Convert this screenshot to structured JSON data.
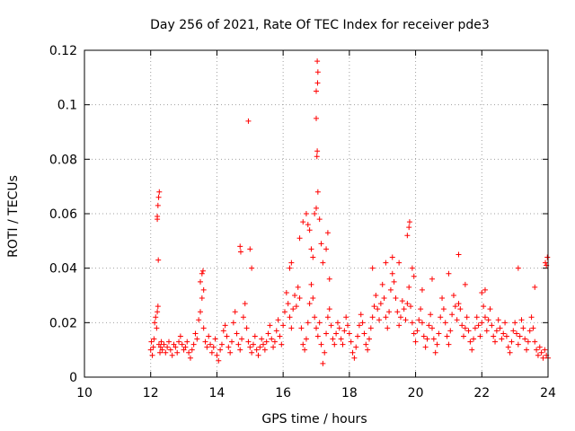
{
  "chart_data": {
    "type": "scatter",
    "title": "Day 256 of 2021, Rate Of TEC Index for receiver pde3",
    "xlabel": "GPS time / hours",
    "ylabel": "ROTI / TECUs",
    "xlim": [
      10,
      24
    ],
    "ylim": [
      0,
      0.12
    ],
    "xticks": [
      "10",
      "12",
      "14",
      "16",
      "18",
      "20",
      "22",
      "24"
    ],
    "yticks": [
      "0",
      "0.02",
      "0.04",
      "0.06",
      "0.08",
      "0.1",
      "0.12"
    ],
    "grid": true,
    "marker": "+",
    "colors": {
      "series": "#ff0000",
      "grid": "#a0a0a0",
      "frame": "#000000"
    },
    "series": [
      {
        "points": [
          [
            12.0,
            0.01
          ],
          [
            12.02,
            0.013
          ],
          [
            12.05,
            0.008
          ],
          [
            12.08,
            0.011
          ],
          [
            12.1,
            0.014
          ],
          [
            12.12,
            0.02
          ],
          [
            12.15,
            0.022
          ],
          [
            12.18,
            0.018
          ],
          [
            12.2,
            0.024
          ],
          [
            12.22,
            0.026
          ],
          [
            12.25,
            0.012
          ],
          [
            12.28,
            0.009
          ],
          [
            12.3,
            0.011
          ],
          [
            12.32,
            0.013
          ],
          [
            12.35,
            0.01
          ],
          [
            12.4,
            0.012
          ],
          [
            12.45,
            0.009
          ],
          [
            12.5,
            0.011
          ],
          [
            12.55,
            0.013
          ],
          [
            12.6,
            0.01
          ],
          [
            12.65,
            0.008
          ],
          [
            12.7,
            0.012
          ],
          [
            12.75,
            0.011
          ],
          [
            12.8,
            0.009
          ],
          [
            12.85,
            0.013
          ],
          [
            12.9,
            0.015
          ],
          [
            12.95,
            0.012
          ],
          [
            13.0,
            0.01
          ],
          [
            13.05,
            0.011
          ],
          [
            13.1,
            0.013
          ],
          [
            13.15,
            0.009
          ],
          [
            13.2,
            0.007
          ],
          [
            13.25,
            0.01
          ],
          [
            13.3,
            0.012
          ],
          [
            13.35,
            0.016
          ],
          [
            13.4,
            0.014
          ],
          [
            13.45,
            0.021
          ],
          [
            13.5,
            0.024
          ],
          [
            13.55,
            0.029
          ],
          [
            13.6,
            0.018
          ],
          [
            13.65,
            0.013
          ],
          [
            13.7,
            0.011
          ],
          [
            13.75,
            0.015
          ],
          [
            13.8,
            0.012
          ],
          [
            13.85,
            0.009
          ],
          [
            13.9,
            0.011
          ],
          [
            13.95,
            0.014
          ],
          [
            14.0,
            0.008
          ],
          [
            14.05,
            0.006
          ],
          [
            14.1,
            0.01
          ],
          [
            14.15,
            0.012
          ],
          [
            14.2,
            0.017
          ],
          [
            14.25,
            0.019
          ],
          [
            14.3,
            0.015
          ],
          [
            14.35,
            0.011
          ],
          [
            14.4,
            0.009
          ],
          [
            14.45,
            0.013
          ],
          [
            14.5,
            0.02
          ],
          [
            14.55,
            0.024
          ],
          [
            14.6,
            0.016
          ],
          [
            14.65,
            0.012
          ],
          [
            14.7,
            0.01
          ],
          [
            14.75,
            0.014
          ],
          [
            14.8,
            0.022
          ],
          [
            14.85,
            0.027
          ],
          [
            14.9,
            0.018
          ],
          [
            14.95,
            0.013
          ],
          [
            15.0,
            0.011
          ],
          [
            15.05,
            0.009
          ],
          [
            15.1,
            0.012
          ],
          [
            15.15,
            0.015
          ],
          [
            15.2,
            0.01
          ],
          [
            15.25,
            0.008
          ],
          [
            15.3,
            0.011
          ],
          [
            15.35,
            0.014
          ],
          [
            15.4,
            0.012
          ],
          [
            15.45,
            0.01
          ],
          [
            15.5,
            0.013
          ],
          [
            15.55,
            0.016
          ],
          [
            15.6,
            0.019
          ],
          [
            15.65,
            0.014
          ],
          [
            15.7,
            0.011
          ],
          [
            15.75,
            0.013
          ],
          [
            15.8,
            0.017
          ],
          [
            15.85,
            0.021
          ],
          [
            15.9,
            0.015
          ],
          [
            15.95,
            0.012
          ],
          [
            16.0,
            0.019
          ],
          [
            16.05,
            0.024
          ],
          [
            16.1,
            0.031
          ],
          [
            16.15,
            0.027
          ],
          [
            16.2,
            0.022
          ],
          [
            16.25,
            0.018
          ],
          [
            16.3,
            0.025
          ],
          [
            16.35,
            0.03
          ],
          [
            16.4,
            0.026
          ],
          [
            16.45,
            0.033
          ],
          [
            16.5,
            0.029
          ],
          [
            16.55,
            0.018
          ],
          [
            16.6,
            0.012
          ],
          [
            16.65,
            0.01
          ],
          [
            16.7,
            0.014
          ],
          [
            16.75,
            0.02
          ],
          [
            16.8,
            0.027
          ],
          [
            16.85,
            0.034
          ],
          [
            16.9,
            0.029
          ],
          [
            16.95,
            0.022
          ],
          [
            17.0,
            0.018
          ],
          [
            17.05,
            0.015
          ],
          [
            17.1,
            0.02
          ],
          [
            17.15,
            0.012
          ],
          [
            17.2,
            0.005
          ],
          [
            17.25,
            0.009
          ],
          [
            17.3,
            0.016
          ],
          [
            17.35,
            0.022
          ],
          [
            17.4,
            0.025
          ],
          [
            17.45,
            0.019
          ],
          [
            17.5,
            0.014
          ],
          [
            17.55,
            0.012
          ],
          [
            17.6,
            0.016
          ],
          [
            17.65,
            0.02
          ],
          [
            17.7,
            0.018
          ],
          [
            17.75,
            0.014
          ],
          [
            17.8,
            0.012
          ],
          [
            17.85,
            0.017
          ],
          [
            17.9,
            0.022
          ],
          [
            17.95,
            0.019
          ],
          [
            18.0,
            0.016
          ],
          [
            18.05,
            0.013
          ],
          [
            18.1,
            0.009
          ],
          [
            18.15,
            0.007
          ],
          [
            18.2,
            0.011
          ],
          [
            18.25,
            0.015
          ],
          [
            18.3,
            0.019
          ],
          [
            18.35,
            0.023
          ],
          [
            18.4,
            0.02
          ],
          [
            18.45,
            0.016
          ],
          [
            18.5,
            0.012
          ],
          [
            18.55,
            0.01
          ],
          [
            18.6,
            0.014
          ],
          [
            18.65,
            0.018
          ],
          [
            18.7,
            0.022
          ],
          [
            18.75,
            0.026
          ],
          [
            18.8,
            0.03
          ],
          [
            18.85,
            0.025
          ],
          [
            18.9,
            0.021
          ],
          [
            18.95,
            0.027
          ],
          [
            19.0,
            0.034
          ],
          [
            19.05,
            0.029
          ],
          [
            19.1,
            0.022
          ],
          [
            19.15,
            0.018
          ],
          [
            19.2,
            0.024
          ],
          [
            19.25,
            0.032
          ],
          [
            19.3,
            0.038
          ],
          [
            19.35,
            0.035
          ],
          [
            19.4,
            0.029
          ],
          [
            19.45,
            0.024
          ],
          [
            19.5,
            0.019
          ],
          [
            19.55,
            0.022
          ],
          [
            19.6,
            0.028
          ],
          [
            19.65,
            0.025
          ],
          [
            19.7,
            0.021
          ],
          [
            19.75,
            0.027
          ],
          [
            19.8,
            0.033
          ],
          [
            19.85,
            0.026
          ],
          [
            19.9,
            0.02
          ],
          [
            19.95,
            0.016
          ],
          [
            20.0,
            0.013
          ],
          [
            20.05,
            0.017
          ],
          [
            20.1,
            0.021
          ],
          [
            20.15,
            0.025
          ],
          [
            20.2,
            0.02
          ],
          [
            20.25,
            0.015
          ],
          [
            20.3,
            0.011
          ],
          [
            20.35,
            0.014
          ],
          [
            20.4,
            0.019
          ],
          [
            20.45,
            0.023
          ],
          [
            20.5,
            0.018
          ],
          [
            20.55,
            0.014
          ],
          [
            20.6,
            0.009
          ],
          [
            20.65,
            0.012
          ],
          [
            20.7,
            0.016
          ],
          [
            20.75,
            0.022
          ],
          [
            20.8,
            0.029
          ],
          [
            20.85,
            0.025
          ],
          [
            20.9,
            0.02
          ],
          [
            20.95,
            0.015
          ],
          [
            21.0,
            0.012
          ],
          [
            21.05,
            0.017
          ],
          [
            21.1,
            0.023
          ],
          [
            21.15,
            0.03
          ],
          [
            21.2,
            0.026
          ],
          [
            21.25,
            0.021
          ],
          [
            21.3,
            0.027
          ],
          [
            21.35,
            0.025
          ],
          [
            21.4,
            0.019
          ],
          [
            21.45,
            0.015
          ],
          [
            21.5,
            0.018
          ],
          [
            21.55,
            0.022
          ],
          [
            21.6,
            0.017
          ],
          [
            21.65,
            0.013
          ],
          [
            21.7,
            0.01
          ],
          [
            21.75,
            0.014
          ],
          [
            21.8,
            0.018
          ],
          [
            21.85,
            0.022
          ],
          [
            21.9,
            0.019
          ],
          [
            21.95,
            0.015
          ],
          [
            22.0,
            0.02
          ],
          [
            22.05,
            0.026
          ],
          [
            22.1,
            0.022
          ],
          [
            22.15,
            0.017
          ],
          [
            22.2,
            0.021
          ],
          [
            22.25,
            0.025
          ],
          [
            22.3,
            0.019
          ],
          [
            22.35,
            0.015
          ],
          [
            22.4,
            0.013
          ],
          [
            22.45,
            0.017
          ],
          [
            22.5,
            0.021
          ],
          [
            22.55,
            0.018
          ],
          [
            22.6,
            0.014
          ],
          [
            22.65,
            0.016
          ],
          [
            22.7,
            0.02
          ],
          [
            22.75,
            0.015
          ],
          [
            22.8,
            0.011
          ],
          [
            22.85,
            0.009
          ],
          [
            22.9,
            0.013
          ],
          [
            22.95,
            0.017
          ],
          [
            23.0,
            0.02
          ],
          [
            23.05,
            0.016
          ],
          [
            23.1,
            0.012
          ],
          [
            23.15,
            0.015
          ],
          [
            23.2,
            0.021
          ],
          [
            23.25,
            0.018
          ],
          [
            23.3,
            0.014
          ],
          [
            23.35,
            0.01
          ],
          [
            23.4,
            0.013
          ],
          [
            23.45,
            0.017
          ],
          [
            23.5,
            0.022
          ],
          [
            23.55,
            0.018
          ],
          [
            23.6,
            0.013
          ],
          [
            23.65,
            0.01
          ],
          [
            23.7,
            0.008
          ],
          [
            23.75,
            0.011
          ],
          [
            23.8,
            0.009
          ],
          [
            23.85,
            0.007
          ],
          [
            23.9,
            0.01
          ],
          [
            23.95,
            0.008
          ],
          [
            24.0,
            0.007
          ],
          [
            12.2,
            0.059
          ],
          [
            12.22,
            0.063
          ],
          [
            12.24,
            0.066
          ],
          [
            12.26,
            0.068
          ],
          [
            12.23,
            0.043
          ],
          [
            12.2,
            0.058
          ],
          [
            13.5,
            0.035
          ],
          [
            13.55,
            0.038
          ],
          [
            13.6,
            0.032
          ],
          [
            13.58,
            0.039
          ],
          [
            14.7,
            0.048
          ],
          [
            14.72,
            0.046
          ],
          [
            15.0,
            0.047
          ],
          [
            15.05,
            0.04
          ],
          [
            14.95,
            0.094
          ],
          [
            16.2,
            0.04
          ],
          [
            16.25,
            0.042
          ],
          [
            16.5,
            0.051
          ],
          [
            16.6,
            0.057
          ],
          [
            16.7,
            0.06
          ],
          [
            16.75,
            0.056
          ],
          [
            16.8,
            0.054
          ],
          [
            16.85,
            0.047
          ],
          [
            16.9,
            0.044
          ],
          [
            16.95,
            0.06
          ],
          [
            17.0,
            0.062
          ],
          [
            17.05,
            0.068
          ],
          [
            17.02,
            0.081
          ],
          [
            17.03,
            0.083
          ],
          [
            17.0,
            0.095
          ],
          [
            17.0,
            0.105
          ],
          [
            17.04,
            0.108
          ],
          [
            17.05,
            0.112
          ],
          [
            17.03,
            0.116
          ],
          [
            17.1,
            0.058
          ],
          [
            17.15,
            0.049
          ],
          [
            17.3,
            0.047
          ],
          [
            17.35,
            0.053
          ],
          [
            17.2,
            0.042
          ],
          [
            17.4,
            0.036
          ],
          [
            18.7,
            0.04
          ],
          [
            19.1,
            0.042
          ],
          [
            19.3,
            0.044
          ],
          [
            19.5,
            0.042
          ],
          [
            19.75,
            0.052
          ],
          [
            19.8,
            0.055
          ],
          [
            19.82,
            0.057
          ],
          [
            19.9,
            0.04
          ],
          [
            19.95,
            0.037
          ],
          [
            20.2,
            0.032
          ],
          [
            20.5,
            0.036
          ],
          [
            21.0,
            0.038
          ],
          [
            21.3,
            0.045
          ],
          [
            21.5,
            0.034
          ],
          [
            22.0,
            0.031
          ],
          [
            22.1,
            0.032
          ],
          [
            23.1,
            0.04
          ],
          [
            23.6,
            0.033
          ],
          [
            23.95,
            0.041
          ],
          [
            23.98,
            0.044
          ],
          [
            23.92,
            0.042
          ]
        ]
      }
    ]
  }
}
